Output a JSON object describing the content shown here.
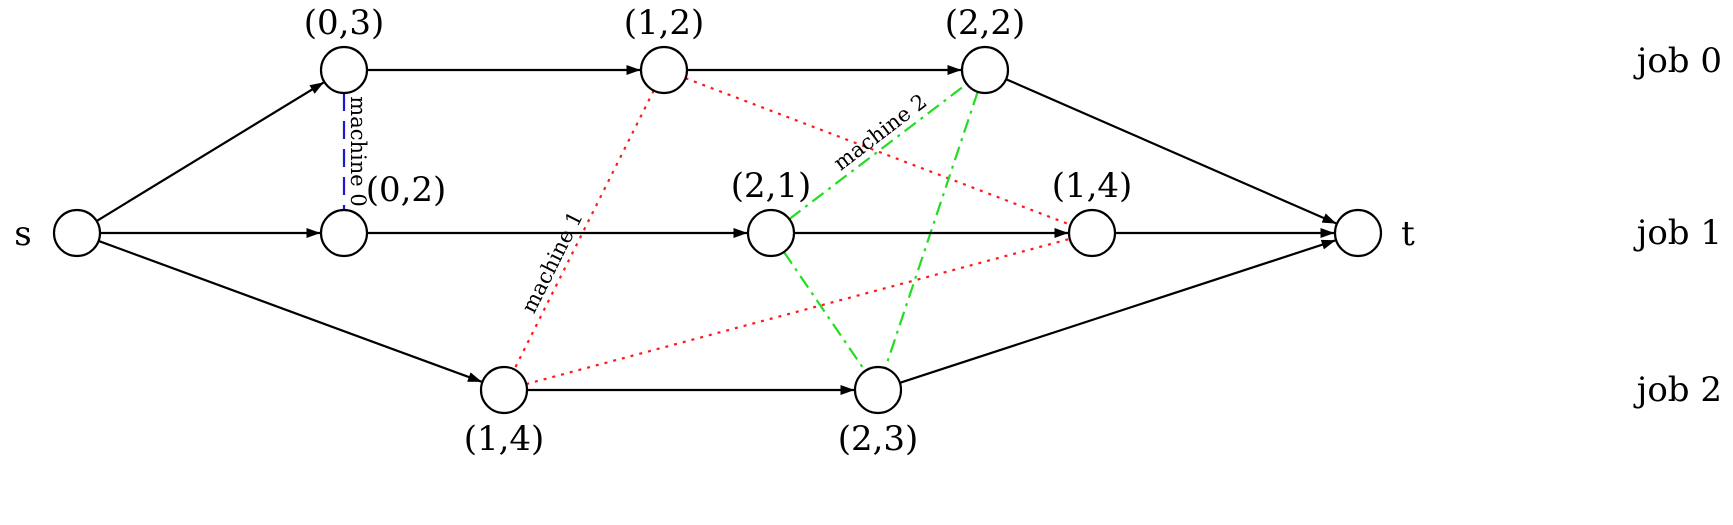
{
  "diagram": {
    "nodes": [
      {
        "id": "s",
        "label": "s",
        "label_pos": "left"
      },
      {
        "id": "n03",
        "label": "(0,3)",
        "label_pos": "above"
      },
      {
        "id": "n12",
        "label": "(1,2)",
        "label_pos": "above"
      },
      {
        "id": "n22",
        "label": "(2,2)",
        "label_pos": "above"
      },
      {
        "id": "n02",
        "label": "(0,2)",
        "label_pos": "above-right"
      },
      {
        "id": "n21",
        "label": "(2,1)",
        "label_pos": "above"
      },
      {
        "id": "n14b",
        "label": "(1,4)",
        "label_pos": "above"
      },
      {
        "id": "t",
        "label": "t",
        "label_pos": "right"
      },
      {
        "id": "n14c",
        "label": "(1,4)",
        "label_pos": "below"
      },
      {
        "id": "n23",
        "label": "(2,3)",
        "label_pos": "below"
      }
    ],
    "arcs": [
      {
        "from": "s",
        "to": "n03"
      },
      {
        "from": "s",
        "to": "n02"
      },
      {
        "from": "s",
        "to": "n14c"
      },
      {
        "from": "n03",
        "to": "n12"
      },
      {
        "from": "n12",
        "to": "n22"
      },
      {
        "from": "n22",
        "to": "t"
      },
      {
        "from": "n02",
        "to": "n21"
      },
      {
        "from": "n21",
        "to": "n14b"
      },
      {
        "from": "n14b",
        "to": "t"
      },
      {
        "from": "n14c",
        "to": "n23"
      },
      {
        "from": "n23",
        "to": "t"
      }
    ],
    "machine_edges": [
      {
        "from": "n03",
        "to": "n02",
        "machine": "machine 0",
        "color": "#1a1acc",
        "dash": "18 10"
      },
      {
        "from": "n12",
        "to": "n14c",
        "machine": "machine 1",
        "color": "#ff1a1a",
        "dash": "3 6"
      },
      {
        "from": "n12",
        "to": "n14b",
        "machine": "",
        "color": "#ff1a1a",
        "dash": "3 6"
      },
      {
        "from": "n14c",
        "to": "n14b",
        "machine": "",
        "color": "#ff1a1a",
        "dash": "3 6"
      },
      {
        "from": "n21",
        "to": "n22",
        "machine": "machine 2",
        "color": "#22dd22",
        "dash": "14 6 3 6"
      },
      {
        "from": "n22",
        "to": "n23",
        "machine": "",
        "color": "#22dd22",
        "dash": "14 6 3 6"
      },
      {
        "from": "n21",
        "to": "n23",
        "machine": "",
        "color": "#22dd22",
        "dash": "14 6 3 6"
      }
    ],
    "job_labels": [
      "job 0",
      "job 1",
      "job 2"
    ]
  }
}
